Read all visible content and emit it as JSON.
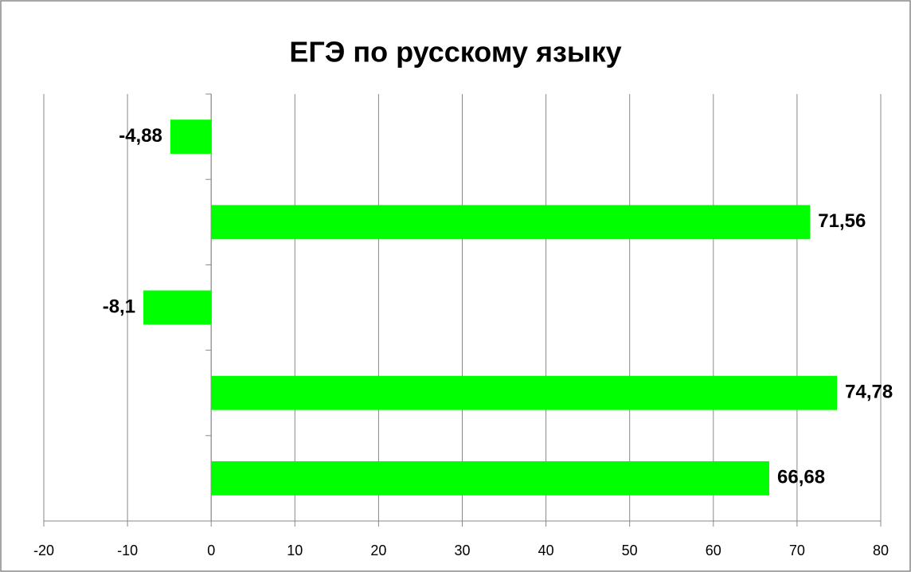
{
  "chart_data": {
    "type": "bar",
    "orientation": "horizontal",
    "title": "ЕГЭ по русскому языку",
    "categories": [
      null,
      null,
      null,
      null,
      null
    ],
    "values": [
      66.68,
      74.78,
      -8.1,
      71.56,
      -4.88
    ],
    "value_labels": [
      "66,68",
      "74,78",
      "-8,1",
      "71,56",
      "-4,88"
    ],
    "color": "#00ff00",
    "xlim": [
      -20,
      80
    ],
    "xticks": [
      -20,
      -10,
      0,
      10,
      20,
      30,
      40,
      50,
      60,
      70,
      80
    ],
    "grid": true
  }
}
